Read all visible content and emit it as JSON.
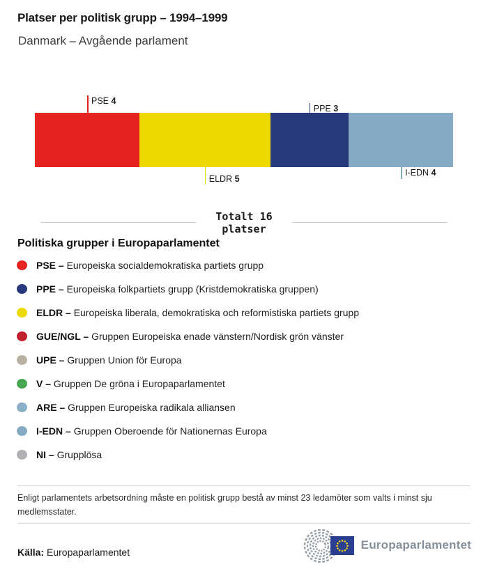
{
  "header": {
    "title": "Platser per politisk grupp – 1994–1999",
    "subtitle": "Danmark – Avgående parlament"
  },
  "chart_data": {
    "type": "bar",
    "orientation": "horizontal-stacked",
    "title": "Platser per politisk grupp – 1994–1999",
    "subtitle": "Danmark – Avgående parlament",
    "total_seats": 16,
    "total_label": "Totalt 16 platser",
    "segments": [
      {
        "group": "PSE",
        "seats": 4,
        "color": "#e52320",
        "label_position": "above"
      },
      {
        "group": "ELDR",
        "seats": 5,
        "color": "#ecd900",
        "label_position": "below"
      },
      {
        "group": "PPE",
        "seats": 3,
        "color": "#293a7c",
        "label_position": "above"
      },
      {
        "group": "I-EDN",
        "seats": 4,
        "color": "#84abc3",
        "label_position": "below"
      }
    ]
  },
  "total": {
    "line1": "Totalt 16",
    "line2": "platser"
  },
  "legend": {
    "heading": "Politiska grupper i Europaparlamentet",
    "items": [
      {
        "abbr": "PSE –",
        "name": "Europeiska socialdemokratiska partiets grupp",
        "color": "#e52320"
      },
      {
        "abbr": "PPE –",
        "name": "Europeiska folkpartiets grupp (Kristdemokratiska gruppen)",
        "color": "#293a7c"
      },
      {
        "abbr": "ELDR –",
        "name": "Europeiska liberala, demokratiska och reformistiska partiets grupp",
        "color": "#ecd900"
      },
      {
        "abbr": "GUE/NGL –",
        "name": "Gruppen Europeiska enade vänstern/Nordisk grön vänster",
        "color": "#c21f2f"
      },
      {
        "abbr": "UPE –",
        "name": "Gruppen Union för Europa",
        "color": "#b9b2a3"
      },
      {
        "abbr": "V –",
        "name": "Gruppen De gröna i Europaparlamentet",
        "color": "#48a852"
      },
      {
        "abbr": "ARE –",
        "name": "Gruppen Europeiska radikala alliansen",
        "color": "#8cb0c9"
      },
      {
        "abbr": "I-EDN –",
        "name": "Gruppen Oberoende för Nationernas Europa",
        "color": "#84abc3"
      },
      {
        "abbr": "NI –",
        "name": "Grupplösa",
        "color": "#afb1b4"
      }
    ]
  },
  "footnote": "Enligt parlamentets arbetsordning måste en politisk grupp bestå av minst 23 ledamöter som valts i minst sju medlemsstater.",
  "source": {
    "label": "Källa:",
    "value": "Europaparlamentet"
  },
  "logo": {
    "text": "Europaparlamentet",
    "flag_color": "#2b3f92",
    "star_color": "#f5d010",
    "arc_color": "#98a0a6"
  }
}
